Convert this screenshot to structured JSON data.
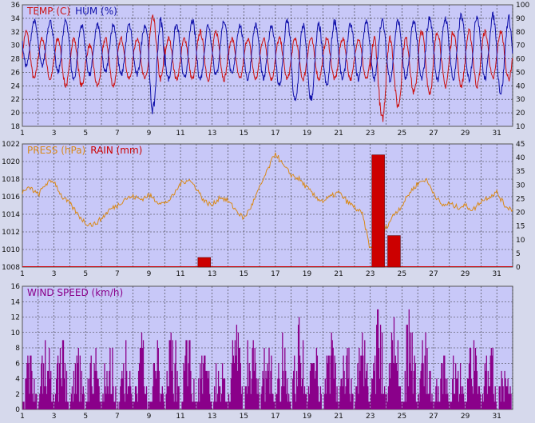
{
  "colors": {
    "background": "#d6d9ec",
    "plot_bg": "#c8c8f8",
    "grid": "#333333",
    "temp": "#cc1111",
    "hum": "#1111aa",
    "press": "#d98a1a",
    "rain": "#cc0000",
    "wind": "#8a008a"
  },
  "chart_data": [
    {
      "type": "line",
      "title_parts": [
        {
          "text": "TEMP (C)",
          "color": "#cc1111"
        },
        {
          "text": "HUM (%)",
          "color": "#1111aa"
        }
      ],
      "xlim": [
        1,
        32
      ],
      "x_ticks": [
        "1",
        "3",
        "5",
        "7",
        "9",
        "11",
        "13",
        "15",
        "17",
        "19",
        "21",
        "23",
        "25",
        "27",
        "29",
        "31"
      ],
      "y_left": {
        "range": [
          18,
          36
        ],
        "ticks": [
          "18",
          "20",
          "22",
          "24",
          "26",
          "28",
          "30",
          "32",
          "34",
          "36"
        ]
      },
      "y_right": {
        "range": [
          10,
          100
        ],
        "ticks": [
          "10",
          "20",
          "30",
          "40",
          "50",
          "60",
          "70",
          "80",
          "90",
          "100"
        ]
      },
      "grid": true,
      "series": [
        {
          "name": "TEMP (C)",
          "axis": "left",
          "color": "#cc1111",
          "daily_min": [
            25,
            25,
            24,
            24,
            24,
            24,
            25,
            25,
            25,
            25,
            25,
            25,
            25,
            25,
            25,
            25,
            25,
            25,
            25,
            25,
            25,
            25,
            19,
            21,
            23,
            23,
            24,
            24,
            24,
            25,
            25
          ],
          "daily_max": [
            32,
            31,
            31,
            31,
            30,
            31,
            31,
            31,
            34,
            31,
            31,
            32,
            32,
            31,
            31,
            31,
            31,
            31,
            31,
            31,
            31,
            31,
            31,
            31,
            31,
            32,
            32,
            32,
            32,
            32,
            32
          ]
        },
        {
          "name": "HUM (%)",
          "axis": "right",
          "color": "#1111aa",
          "daily_min": [
            55,
            55,
            50,
            45,
            48,
            50,
            48,
            48,
            22,
            45,
            45,
            45,
            48,
            48,
            45,
            45,
            40,
            28,
            30,
            40,
            45,
            45,
            45,
            45,
            45,
            45,
            45,
            45,
            45,
            45,
            35
          ],
          "daily_max": [
            88,
            88,
            88,
            85,
            85,
            85,
            85,
            85,
            88,
            85,
            88,
            85,
            88,
            85,
            85,
            85,
            88,
            85,
            85,
            88,
            85,
            88,
            88,
            88,
            88,
            90,
            90,
            92,
            92,
            92,
            90
          ]
        }
      ]
    },
    {
      "type": "line",
      "title_parts": [
        {
          "text": "PRESS (hPa)",
          "color": "#d98a1a"
        },
        {
          "text": "RAIN (mm)",
          "color": "#cc0000"
        }
      ],
      "xlim": [
        1,
        32
      ],
      "x_ticks": [
        "1",
        "3",
        "5",
        "7",
        "9",
        "11",
        "13",
        "15",
        "17",
        "19",
        "21",
        "23",
        "25",
        "27",
        "29",
        "31"
      ],
      "y_left": {
        "range": [
          1008,
          1022
        ],
        "ticks": [
          "1008",
          "1010",
          "1012",
          "1014",
          "1016",
          "1018",
          "1020",
          "1022"
        ]
      },
      "y_right": {
        "range": [
          0,
          45
        ],
        "ticks": [
          "0",
          "5",
          "10",
          "15",
          "20",
          "25",
          "30",
          "35",
          "40",
          "45"
        ]
      },
      "grid": true,
      "series": [
        {
          "name": "PRESS (hPa)",
          "axis": "left",
          "color": "#d98a1a",
          "type": "line",
          "x": [
            1,
            1.5,
            2,
            2.5,
            3,
            3.5,
            4,
            4.5,
            5,
            5.5,
            6,
            6.5,
            7,
            7.5,
            8,
            8.5,
            9,
            9.5,
            10,
            10.5,
            11,
            11.5,
            12,
            12.5,
            13,
            13.5,
            14,
            14.5,
            15,
            15.5,
            16,
            16.5,
            17,
            17.5,
            18,
            18.5,
            19,
            19.5,
            20,
            20.5,
            21,
            21.5,
            22,
            22.5,
            23,
            23.5,
            24,
            24.5,
            25,
            25.5,
            26,
            26.5,
            27,
            27.5,
            28,
            28.5,
            29,
            29.5,
            30,
            30.5,
            31,
            31.5,
            32
          ],
          "y": [
            1016.5,
            1017,
            1016.2,
            1017.5,
            1017.8,
            1016,
            1015.2,
            1014,
            1013,
            1012.8,
            1013.5,
            1014.5,
            1015,
            1015.8,
            1016,
            1015.7,
            1016.2,
            1015.5,
            1015.2,
            1016,
            1017.5,
            1018,
            1017,
            1015.5,
            1015,
            1016,
            1015.5,
            1014.5,
            1013.5,
            1015,
            1017,
            1019,
            1021,
            1019.5,
            1018.5,
            1018,
            1017,
            1016,
            1015.5,
            1016,
            1016.5,
            1015.5,
            1014.8,
            1014,
            1010,
            1011,
            1012.5,
            1014,
            1015,
            1016.5,
            1017.5,
            1018,
            1016.5,
            1015,
            1015.2,
            1014.8,
            1015,
            1014.5,
            1015.5,
            1016,
            1016.5,
            1015,
            1014.5
          ]
        },
        {
          "name": "RAIN (mm)",
          "axis": "right",
          "color": "#cc0000",
          "type": "bar",
          "x": [
            12.5,
            23.5,
            24.5
          ],
          "y": [
            3.5,
            41,
            11.5
          ]
        }
      ]
    },
    {
      "type": "line",
      "title_parts": [
        {
          "text": "WIND SPEED (km/h)",
          "color": "#8a008a"
        }
      ],
      "xlim": [
        1,
        32
      ],
      "x_ticks": [
        "1",
        "3",
        "5",
        "7",
        "9",
        "11",
        "13",
        "15",
        "17",
        "19",
        "21",
        "23",
        "25",
        "27",
        "29",
        "31"
      ],
      "y_left": {
        "range": [
          0,
          16
        ],
        "ticks": [
          "0",
          "2",
          "4",
          "6",
          "8",
          "10",
          "12",
          "14",
          "16"
        ]
      },
      "grid": true,
      "series": [
        {
          "name": "WIND SPEED (km/h)",
          "axis": "left",
          "color": "#8a008a",
          "daily_max": [
            8,
            11,
            10,
            8,
            9,
            10,
            10,
            10,
            9,
            12,
            11,
            10,
            11,
            12,
            14,
            10,
            12,
            13,
            10,
            11,
            10,
            11,
            14,
            13,
            14,
            12,
            10,
            10,
            12,
            11,
            7
          ]
        }
      ]
    }
  ]
}
